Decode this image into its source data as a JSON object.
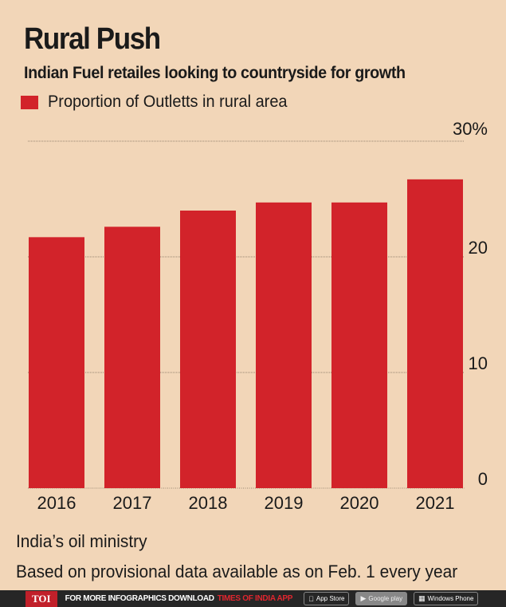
{
  "header": {
    "title": "Rural Push",
    "subtitle": "Indian Fuel retailes looking to countryside for growth"
  },
  "colors": {
    "bar": "#d2232a",
    "background": "#f2d6b8",
    "grid": "#7a6a5a",
    "text": "#1a1a1a"
  },
  "chart_data": {
    "type": "bar",
    "categories": [
      "2016",
      "2017",
      "2018",
      "2019",
      "2020",
      "2021"
    ],
    "series": [
      {
        "name": "Proportion of Outletts in rural area",
        "values": [
          21.7,
          22.6,
          24.0,
          24.7,
          24.7,
          26.7
        ]
      }
    ],
    "ylim": [
      0,
      30
    ],
    "yticks": [
      {
        "value": 30,
        "label": "30%"
      },
      {
        "value": 20,
        "label": "20"
      },
      {
        "value": 10,
        "label": "10"
      },
      {
        "value": 0,
        "label": "0"
      }
    ],
    "legend_position": "top-left",
    "grid": true
  },
  "footer": {
    "source": "India’s oil ministry",
    "note": "Based on provisional data available as on Feb. 1 every year"
  },
  "banner": {
    "logo": "TOI",
    "text": "FOR MORE  INFOGRAPHICS DOWNLOAD",
    "app": "TIMES OF INDIA  APP",
    "stores": [
      {
        "name": "App Store",
        "icon": "apple-icon"
      },
      {
        "name": "Google play",
        "icon": "play-icon"
      },
      {
        "name": "Windows Phone",
        "icon": "windows-icon"
      }
    ]
  }
}
